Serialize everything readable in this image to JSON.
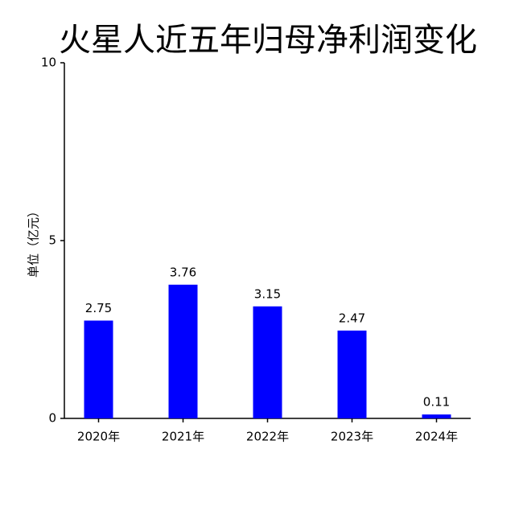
{
  "chart_data": {
    "type": "bar",
    "title": "火星人近五年归母净利润变化",
    "y_label": "单位（亿元）",
    "categories": [
      "2020年",
      "2021年",
      "2022年",
      "2023年",
      "2024年"
    ],
    "values": [
      2.75,
      3.76,
      3.15,
      2.47,
      0.11
    ],
    "color": "#0000ff",
    "ylim": [
      0,
      10
    ],
    "yticks": [
      0,
      5,
      10
    ]
  }
}
